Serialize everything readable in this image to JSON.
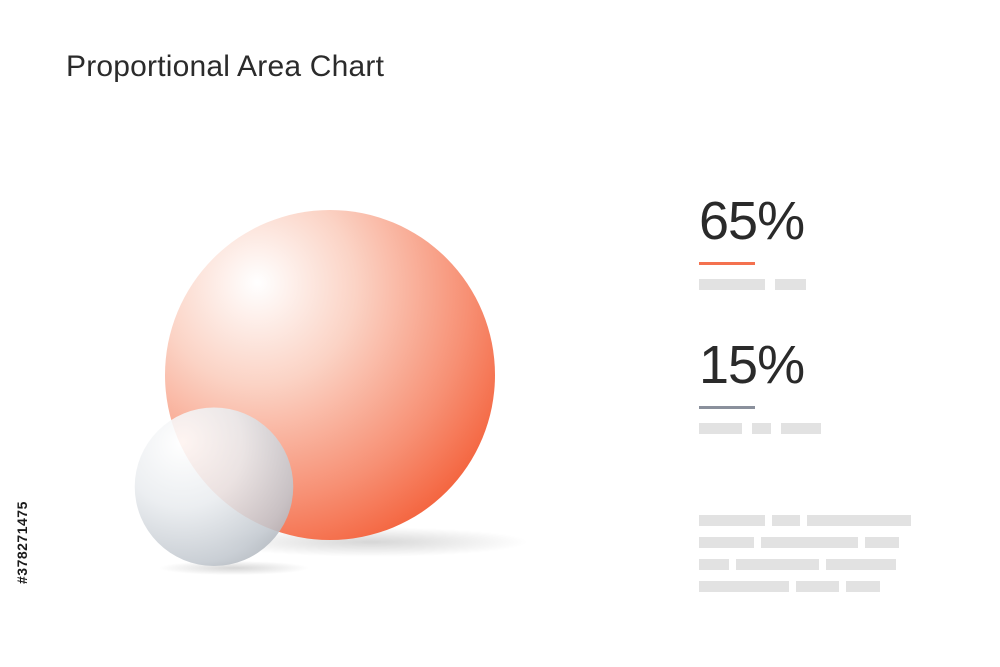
{
  "chart_data": {
    "type": "proportional-area",
    "title": "Proportional Area Chart",
    "series": [
      {
        "value": 65,
        "label": "65%",
        "color": "#f4714f"
      },
      {
        "value": 15,
        "label": "15%",
        "color": "#8a909c"
      }
    ]
  },
  "watermark": {
    "id": "#378271475"
  },
  "colors": {
    "accent_orange": "#f4714f",
    "accent_gray": "#8a909c",
    "placeholder": "#e2e2e2"
  }
}
